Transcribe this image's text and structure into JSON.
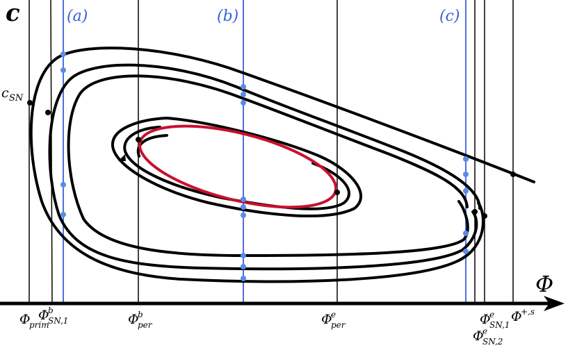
{
  "axes": {
    "y_label": "c",
    "x_label": "Φ"
  },
  "sections": [
    "(a)",
    "(b)",
    "(c)"
  ],
  "curve_label": {
    "base": "c",
    "sub": "SN"
  },
  "x_labels": [
    {
      "base": "Φ",
      "sub": "prim"
    },
    {
      "base": "Φ",
      "sup": "b",
      "sub": "SN,1"
    },
    {
      "base": "Φ",
      "sup": "b",
      "sub": "per"
    },
    {
      "base": "Φ",
      "sup": "e",
      "sub": "per"
    },
    {
      "base": "Φ",
      "sup": "e",
      "sub": "SN,1"
    },
    {
      "base": "Φ",
      "sup": "+,s"
    },
    {
      "base": "Φ",
      "sup": "e",
      "sub": "SN,2"
    }
  ]
}
